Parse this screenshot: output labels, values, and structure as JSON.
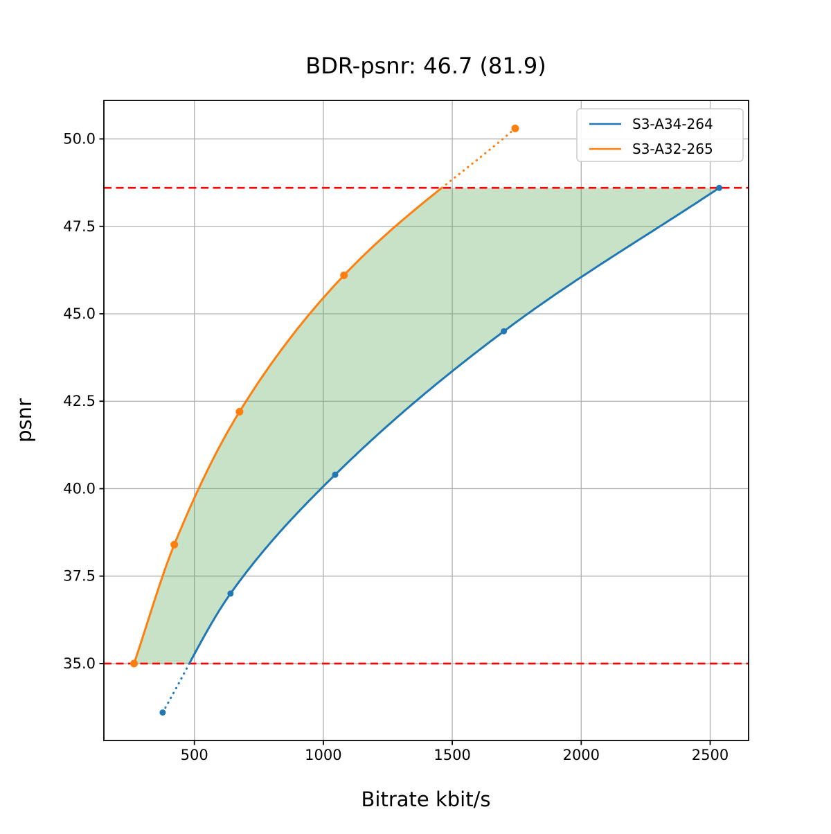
{
  "figure": {
    "background": "#ffffff"
  },
  "chart_data": {
    "type": "line",
    "title": "BDR-psnr: 46.7 (81.9)",
    "xlabel": "Bitrate kbit/s",
    "ylabel": "psnr",
    "xlim": [
      149,
      2649
    ],
    "ylim": [
      32.8,
      51.1
    ],
    "xticks": [
      500,
      1000,
      1500,
      2000,
      2500
    ],
    "yticks": [
      35.0,
      37.5,
      40.0,
      42.5,
      45.0,
      47.5,
      50.0
    ],
    "grid": true,
    "grid_color": "#b0b0b0",
    "legend_position": "upper right",
    "series": [
      {
        "name": "S3-A34-264",
        "color": "#1f77b4",
        "marker": "circle",
        "marker_radius": 4.5,
        "line_width": 3,
        "x": [
          377,
          640,
          1046,
          1700,
          2535
        ],
        "y": [
          33.6,
          37.0,
          40.4,
          44.5,
          48.6
        ]
      },
      {
        "name": "S3-A32-265",
        "color": "#ff7f0e",
        "marker": "circle",
        "marker_radius": 5.5,
        "line_width": 3,
        "x": [
          266,
          422,
          675,
          1080,
          1744
        ],
        "y": [
          35.0,
          38.4,
          42.2,
          46.1,
          50.3
        ]
      }
    ],
    "overlap_range": {
      "low": 35.0,
      "high": 48.6,
      "line_color": "#ff0000",
      "line_style": "dashed"
    },
    "fill_between": {
      "color": "#4a9e4a",
      "opacity": 0.3
    }
  }
}
